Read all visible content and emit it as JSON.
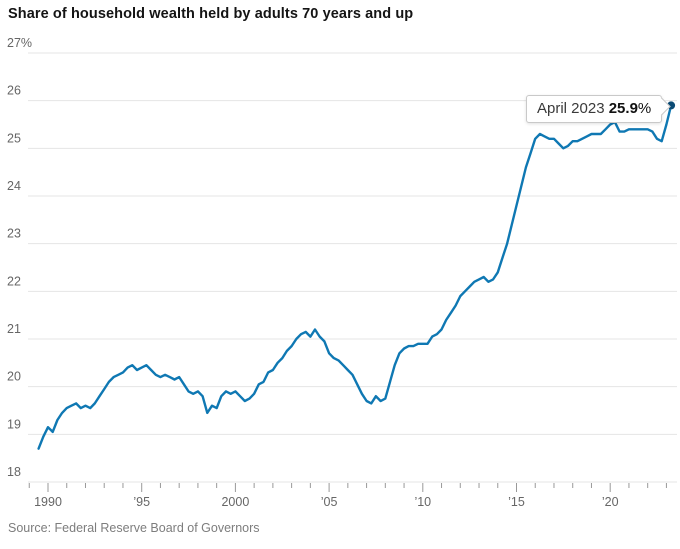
{
  "title": "Share of household wealth held by adults 70 years and up",
  "source": "Source: Federal Reserve Board of Governors",
  "annotation": {
    "label": "April 2023",
    "value": "25.9",
    "suffix": "%"
  },
  "colors": {
    "line": "#0f78b3",
    "dot": "#0b4a73",
    "grid": "#e5e5e5",
    "axis_text": "#666666",
    "tick": "#999999"
  },
  "chart_data": {
    "type": "line",
    "title": "Share of household wealth held by adults 70 years and up",
    "xlabel": "",
    "ylabel": "",
    "ylim": [
      18,
      27
    ],
    "grid": "horizontal",
    "legend": "none",
    "yticks": [
      {
        "value": 18,
        "label": "18"
      },
      {
        "value": 19,
        "label": "19"
      },
      {
        "value": 20,
        "label": "20"
      },
      {
        "value": 21,
        "label": "21"
      },
      {
        "value": 22,
        "label": "22"
      },
      {
        "value": 23,
        "label": "23"
      },
      {
        "value": 24,
        "label": "24"
      },
      {
        "value": 25,
        "label": "25"
      },
      {
        "value": 26,
        "label": "26"
      },
      {
        "value": 27,
        "label": "27%"
      }
    ],
    "tick_years": [
      1989,
      2023
    ],
    "x_major_ticks": [
      {
        "year": 1990,
        "label": "1990"
      },
      {
        "year": 1995,
        "label": "’95"
      },
      {
        "year": 2000,
        "label": "2000"
      },
      {
        "year": 2005,
        "label": "’05"
      },
      {
        "year": 2010,
        "label": "’10"
      },
      {
        "year": 2015,
        "label": "’15"
      },
      {
        "year": 2020,
        "label": "’20"
      }
    ],
    "x_start": 1989.5,
    "x_step": 0.25,
    "x_unit": "year (quarterly)",
    "values": [
      18.7,
      18.95,
      19.15,
      19.05,
      19.3,
      19.45,
      19.55,
      19.6,
      19.65,
      19.55,
      19.6,
      19.55,
      19.65,
      19.8,
      19.95,
      20.1,
      20.2,
      20.25,
      20.3,
      20.4,
      20.45,
      20.35,
      20.4,
      20.45,
      20.35,
      20.25,
      20.2,
      20.25,
      20.2,
      20.15,
      20.2,
      20.05,
      19.9,
      19.85,
      19.9,
      19.8,
      19.45,
      19.6,
      19.55,
      19.8,
      19.9,
      19.85,
      19.9,
      19.8,
      19.7,
      19.75,
      19.85,
      20.05,
      20.1,
      20.3,
      20.35,
      20.5,
      20.6,
      20.75,
      20.85,
      21.0,
      21.1,
      21.15,
      21.05,
      21.2,
      21.05,
      20.95,
      20.7,
      20.6,
      20.55,
      20.45,
      20.35,
      20.25,
      20.05,
      19.85,
      19.7,
      19.65,
      19.8,
      19.7,
      19.75,
      20.1,
      20.45,
      20.7,
      20.8,
      20.85,
      20.85,
      20.9,
      20.9,
      20.9,
      21.05,
      21.1,
      21.2,
      21.4,
      21.55,
      21.7,
      21.9,
      22.0,
      22.1,
      22.2,
      22.25,
      22.3,
      22.2,
      22.25,
      22.4,
      22.7,
      23.0,
      23.4,
      23.8,
      24.2,
      24.6,
      24.9,
      25.2,
      25.3,
      25.25,
      25.2,
      25.2,
      25.1,
      25.0,
      25.05,
      25.15,
      25.15,
      25.2,
      25.25,
      25.3,
      25.3,
      25.3,
      25.4,
      25.5,
      25.55,
      25.35,
      25.35,
      25.4,
      25.4,
      25.4,
      25.4,
      25.4,
      25.35,
      25.2,
      25.15,
      25.5,
      25.9
    ],
    "end_point": {
      "x": 2023.25,
      "value": 25.9,
      "label": "April 2023 25.9%"
    }
  }
}
